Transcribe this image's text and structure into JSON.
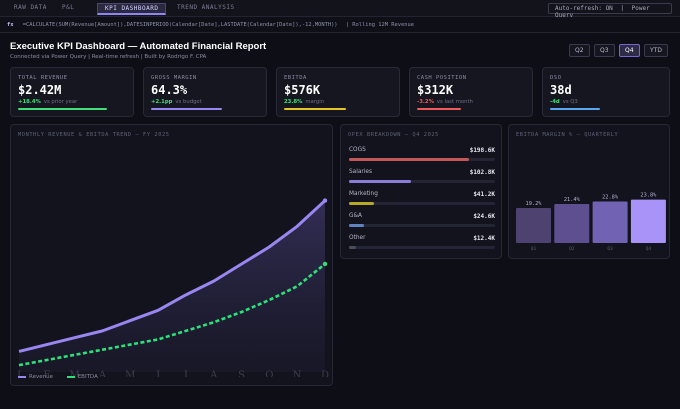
{
  "tabs": [
    {
      "label": "RAW DATA"
    },
    {
      "label": "P&L"
    },
    {
      "label": "KPI DASHBOARD"
    },
    {
      "label": "TREND ANALYSIS"
    }
  ],
  "controls": {
    "auto_refresh": "Auto-refresh: ON",
    "separator": "|",
    "power_query": "Power Query"
  },
  "formula_bar": {
    "fx": "fx",
    "formula": "=CALCULATE(SUM(Revenue[Amount]),DATESINPERIOD(Calendar[Date],LASTDATE(Calendar[Date]),-12,MONTH))",
    "note": "|   Rolling 12M Revenue"
  },
  "header": {
    "title": "Executive KPI Dashboard — Automated Financial Report",
    "subtitle": "Connected via Power Query  |  Real-time refresh  |  Built by Rodrigo F. CPA"
  },
  "periods": [
    "Q2",
    "Q3",
    "Q4",
    "YTD"
  ],
  "selected_period": "Q4",
  "kpis": [
    {
      "label": "TOTAL REVENUE",
      "value": "$2.42M",
      "delta": "+18.4%",
      "delta_note": "vs prior year",
      "delta_color": "#3ee07a",
      "bar_color": "#3ee07a",
      "progress": 0.82
    },
    {
      "label": "GROSS MARGIN",
      "value": "64.3%",
      "delta": "+2.1pp",
      "delta_note": "vs budget",
      "delta_color": "#3ee07a",
      "bar_color": "#9a86f0",
      "progress": 0.66
    },
    {
      "label": "EBITDA",
      "value": "$576K",
      "delta": "23.8%",
      "delta_note": "margin",
      "delta_color": "#3ee07a",
      "bar_color": "#e6c620",
      "progress": 0.57
    },
    {
      "label": "CASH POSITION",
      "value": "$312K",
      "delta": "-3.2%",
      "delta_note": "vs last month",
      "delta_color": "#f05a5a",
      "bar_color": "#f05a5a",
      "progress": 0.41
    },
    {
      "label": "DSO",
      "value": "38d",
      "delta": "-4d",
      "delta_note": "vs Q3",
      "delta_color": "#3ee07a",
      "bar_color": "#5ca8f0",
      "progress": 0.45
    }
  ],
  "trend_panel": {
    "title": "MONTHLY REVENUE & EBITDA TREND — FY 2025"
  },
  "opex_panel": {
    "title": "OPEX BREAKDOWN — Q4 2025"
  },
  "margin_panel": {
    "title": "EBITDA MARGIN % — QUARTERLY"
  },
  "chart_data": [
    {
      "type": "line",
      "title": "MONTHLY REVENUE & EBITDA TREND — FY 2025",
      "x": [
        "J",
        "F",
        "M",
        "A",
        "M",
        "J",
        "J",
        "A",
        "S",
        "O",
        "N",
        "D"
      ],
      "series": [
        {
          "name": "Revenue",
          "color": "#9a86f0",
          "style": "solid",
          "values": [
            12,
            16,
            20,
            24,
            30,
            36,
            45,
            53,
            63,
            73,
            85,
            100
          ]
        },
        {
          "name": "EBITDA",
          "color": "#2ee07a",
          "style": "dashed",
          "values": [
            4,
            7,
            10,
            13,
            16,
            19,
            24,
            29,
            35,
            42,
            50,
            63
          ]
        }
      ],
      "ylim": [
        0,
        105
      ],
      "legend": "bottom-left",
      "grid": false
    },
    {
      "type": "bar",
      "title": "OPEX BREAKDOWN — Q4 2025",
      "categories": [
        "COGS",
        "Salaries",
        "Marketing",
        "G&A",
        "Other"
      ],
      "values": [
        198.6,
        102.8,
        41.2,
        24.6,
        12.4
      ],
      "value_labels": [
        "$198.6K",
        "$102.8K",
        "$41.2K",
        "$24.6K",
        "$12.4K"
      ],
      "colors": [
        "#c45858",
        "#8a7ed8",
        "#b8a828",
        "#6082c0",
        "#4a4d5e"
      ],
      "orientation": "horizontal"
    },
    {
      "type": "bar",
      "title": "EBITDA MARGIN % — QUARTERLY",
      "categories": [
        "Q1",
        "Q2",
        "Q3",
        "Q4"
      ],
      "values": [
        19.2,
        21.4,
        22.8,
        23.8
      ],
      "value_labels": [
        "19.2%",
        "21.4%",
        "22.8%",
        "23.8%"
      ],
      "colors": [
        "#4e4270",
        "#5e5090",
        "#7262b4",
        "#a992f8"
      ]
    }
  ]
}
